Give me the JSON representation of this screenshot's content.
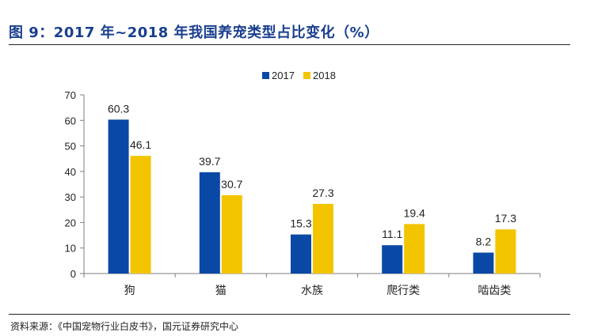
{
  "figure": {
    "title": "图 9：2017 年~2018 年我国养宠类型占比变化（%）",
    "source": "资料来源：《中国宠物行业白皮书》，国元证券研究中心"
  },
  "colors": {
    "title": "#1a3f8f",
    "series_2017": "#0a48a5",
    "series_2018": "#f2c500",
    "axis": "#7f7f7f"
  },
  "chart_data": {
    "type": "bar",
    "title": "",
    "xlabel": "",
    "ylabel": "",
    "categories": [
      "狗",
      "猫",
      "水族",
      "爬行类",
      "啮齿类"
    ],
    "series": [
      {
        "name": "2017",
        "values": [
          60.3,
          39.7,
          15.3,
          11.1,
          8.2
        ],
        "color": "#0a48a5"
      },
      {
        "name": "2018",
        "values": [
          46.1,
          30.7,
          27.3,
          19.4,
          17.3
        ],
        "color": "#f2c500"
      }
    ],
    "ylim": [
      0,
      70
    ],
    "yticks": [
      0,
      10,
      20,
      30,
      40,
      50,
      60,
      70
    ],
    "grid": false,
    "legend": "top-center",
    "data_labels": true
  }
}
